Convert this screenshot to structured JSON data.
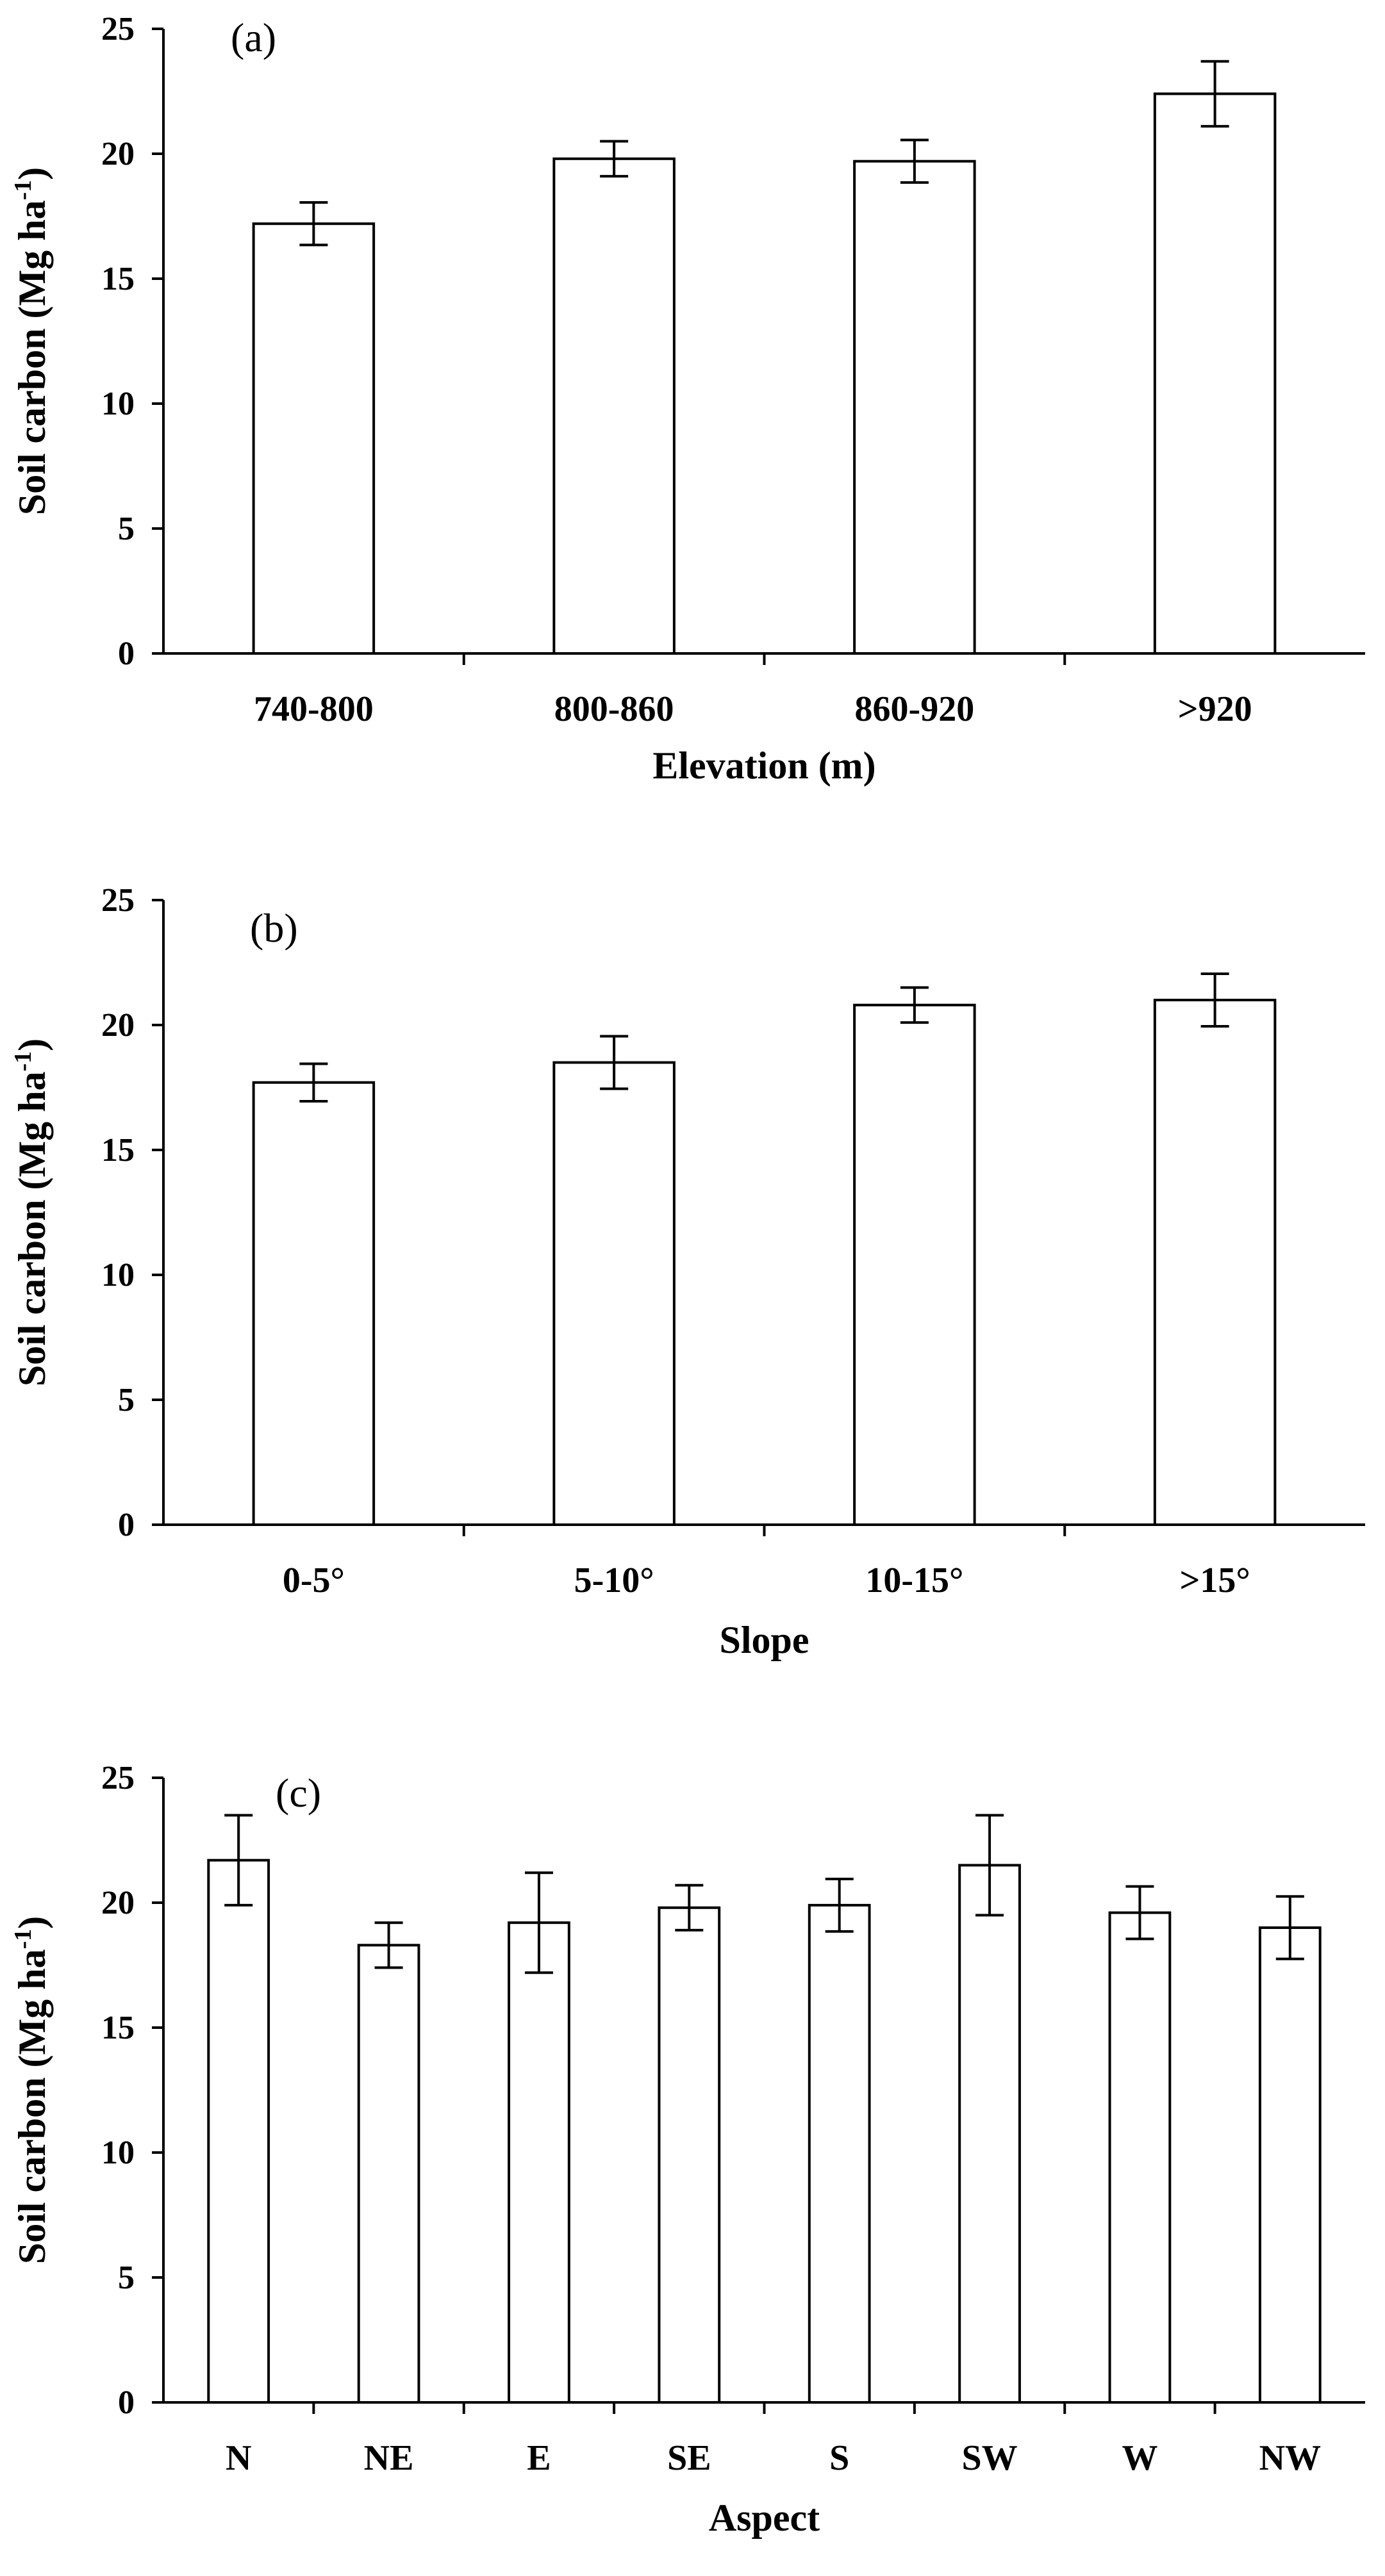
{
  "chart_data": [
    {
      "type": "bar",
      "panel": "(a)",
      "categories": [
        "740-800",
        "800-860",
        "860-920",
        ">920"
      ],
      "values": [
        17.2,
        19.8,
        19.7,
        22.4
      ],
      "errors": [
        0.85,
        0.7,
        0.85,
        1.3
      ],
      "xlabel": "Elevation (m)",
      "ylabel": "Soil carbon (Mg ha",
      "ylabel_sup": "-1",
      "ylabel_end": ")",
      "ylim": [
        0,
        25
      ],
      "yticks": [
        "0",
        "5",
        "10",
        "15",
        "20",
        "25"
      ]
    },
    {
      "type": "bar",
      "panel": "(b)",
      "categories": [
        "0-5°",
        "5-10°",
        "10-15°",
        ">15°"
      ],
      "values": [
        17.7,
        18.5,
        20.8,
        21.0
      ],
      "errors": [
        0.75,
        1.05,
        0.7,
        1.05
      ],
      "xlabel": "Slope",
      "ylabel": "Soil carbon (Mg ha",
      "ylabel_sup": "-1",
      "ylabel_end": ")",
      "ylim": [
        0,
        25
      ],
      "yticks": [
        "0",
        "5",
        "10",
        "15",
        "20",
        "25"
      ]
    },
    {
      "type": "bar",
      "panel": "(c)",
      "categories": [
        "N",
        "NE",
        "E",
        "SE",
        "S",
        "SW",
        "W",
        "NW"
      ],
      "values": [
        21.7,
        18.3,
        19.2,
        19.8,
        19.9,
        21.5,
        19.6,
        19.0
      ],
      "errors": [
        1.8,
        0.9,
        2.0,
        0.9,
        1.05,
        2.0,
        1.05,
        1.25
      ],
      "xlabel": "Aspect",
      "ylabel": "Soil carbon (Mg ha",
      "ylabel_sup": "-1",
      "ylabel_end": ")",
      "ylim": [
        0,
        25
      ],
      "yticks": [
        "0",
        "5",
        "10",
        "15",
        "20",
        "25"
      ]
    }
  ]
}
